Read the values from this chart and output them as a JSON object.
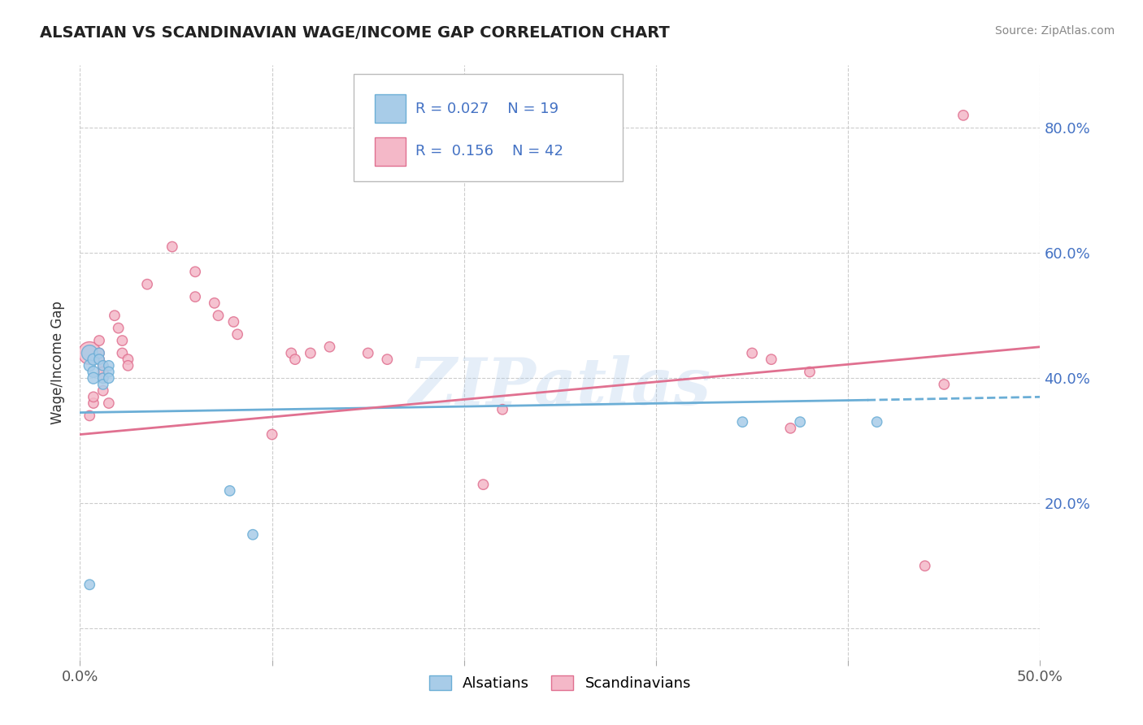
{
  "title": "ALSATIAN VS SCANDINAVIAN WAGE/INCOME GAP CORRELATION CHART",
  "source": "Source: ZipAtlas.com",
  "ylabel": "Wage/Income Gap",
  "xlim": [
    0.0,
    0.5
  ],
  "ylim": [
    -0.05,
    0.9
  ],
  "background_color": "#ffffff",
  "grid_color": "#cccccc",
  "watermark": "ZIPatlas",
  "legend_R1": "0.027",
  "legend_N1": "19",
  "legend_R2": "0.156",
  "legend_N2": "42",
  "alsatian_color": "#a8cce8",
  "scandinavian_color": "#f4b8c8",
  "alsatian_edge": "#6baed6",
  "scandinavian_edge": "#e07090",
  "trend_alsatian": "#6baed6",
  "trend_scandinavian": "#e07090",
  "alsatian_points": [
    [
      0.005,
      0.44
    ],
    [
      0.005,
      0.42
    ],
    [
      0.007,
      0.41
    ],
    [
      0.007,
      0.4
    ],
    [
      0.007,
      0.43
    ],
    [
      0.01,
      0.44
    ],
    [
      0.01,
      0.43
    ],
    [
      0.012,
      0.42
    ],
    [
      0.012,
      0.4
    ],
    [
      0.012,
      0.39
    ],
    [
      0.015,
      0.42
    ],
    [
      0.015,
      0.41
    ],
    [
      0.015,
      0.4
    ],
    [
      0.078,
      0.22
    ],
    [
      0.09,
      0.15
    ],
    [
      0.345,
      0.33
    ],
    [
      0.375,
      0.33
    ],
    [
      0.415,
      0.33
    ],
    [
      0.005,
      0.07
    ]
  ],
  "alsatian_sizes": [
    200,
    100,
    100,
    100,
    100,
    80,
    80,
    80,
    80,
    80,
    80,
    80,
    80,
    80,
    80,
    80,
    80,
    80,
    80
  ],
  "scandinavian_points": [
    [
      0.005,
      0.44
    ],
    [
      0.007,
      0.36
    ],
    [
      0.007,
      0.37
    ],
    [
      0.01,
      0.46
    ],
    [
      0.01,
      0.44
    ],
    [
      0.01,
      0.43
    ],
    [
      0.012,
      0.42
    ],
    [
      0.012,
      0.41
    ],
    [
      0.012,
      0.4
    ],
    [
      0.012,
      0.38
    ],
    [
      0.015,
      0.36
    ],
    [
      0.018,
      0.5
    ],
    [
      0.02,
      0.48
    ],
    [
      0.022,
      0.46
    ],
    [
      0.022,
      0.44
    ],
    [
      0.025,
      0.43
    ],
    [
      0.025,
      0.42
    ],
    [
      0.035,
      0.55
    ],
    [
      0.048,
      0.61
    ],
    [
      0.06,
      0.57
    ],
    [
      0.06,
      0.53
    ],
    [
      0.07,
      0.52
    ],
    [
      0.072,
      0.5
    ],
    [
      0.08,
      0.49
    ],
    [
      0.082,
      0.47
    ],
    [
      0.1,
      0.31
    ],
    [
      0.11,
      0.44
    ],
    [
      0.112,
      0.43
    ],
    [
      0.12,
      0.44
    ],
    [
      0.13,
      0.45
    ],
    [
      0.15,
      0.44
    ],
    [
      0.16,
      0.43
    ],
    [
      0.21,
      0.23
    ],
    [
      0.22,
      0.35
    ],
    [
      0.35,
      0.44
    ],
    [
      0.36,
      0.43
    ],
    [
      0.37,
      0.32
    ],
    [
      0.38,
      0.41
    ],
    [
      0.44,
      0.1
    ],
    [
      0.45,
      0.39
    ],
    [
      0.46,
      0.82
    ],
    [
      0.005,
      0.34
    ]
  ],
  "scandinavian_sizes": [
    400,
    80,
    80,
    80,
    80,
    80,
    80,
    80,
    80,
    80,
    80,
    80,
    80,
    80,
    80,
    80,
    80,
    80,
    80,
    80,
    80,
    80,
    80,
    80,
    80,
    80,
    80,
    80,
    80,
    80,
    80,
    80,
    80,
    80,
    80,
    80,
    80,
    80,
    80,
    80,
    80,
    80
  ],
  "trend_al_x0": 0.0,
  "trend_al_x1": 0.41,
  "trend_al_y0": 0.345,
  "trend_al_y1": 0.365,
  "trend_al_dash_x0": 0.41,
  "trend_al_dash_x1": 0.5,
  "trend_al_dash_y0": 0.365,
  "trend_al_dash_y1": 0.37,
  "trend_sc_x0": 0.0,
  "trend_sc_x1": 0.5,
  "trend_sc_y0": 0.31,
  "trend_sc_y1": 0.45
}
